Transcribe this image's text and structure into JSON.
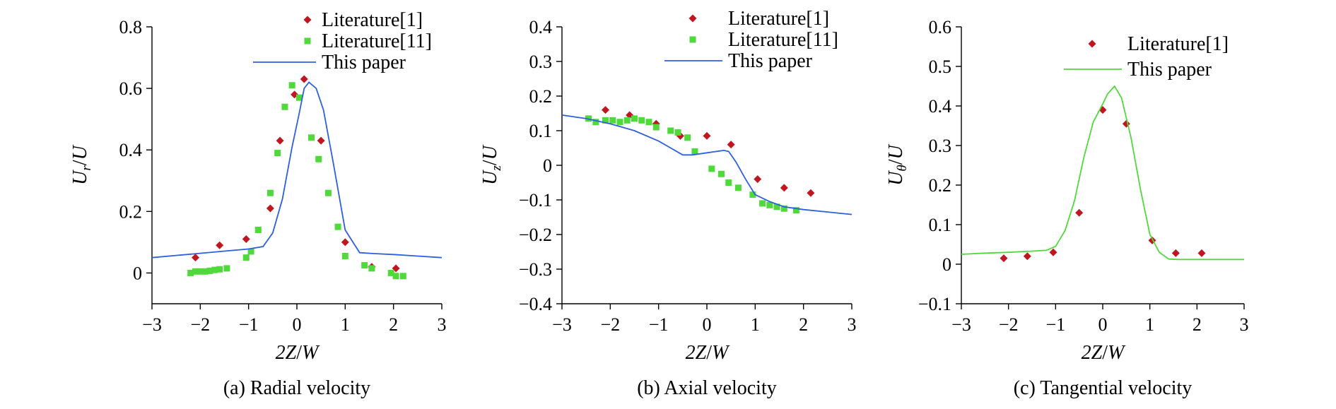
{
  "colors": {
    "literature1": "#c0161f",
    "literature11": "#4fd93b",
    "paper_blue": "#2d5fe0",
    "paper_green": "#4fd93b",
    "axis": "#000000"
  },
  "chart_data": [
    {
      "type": "scatter",
      "caption": "(a) Radial velocity",
      "xlabel": {
        "italic": "2Z",
        "sep": "/",
        "italic2": "W"
      },
      "ylabel": {
        "base": "U",
        "sub": "r",
        "sep": "/",
        "den": "U"
      },
      "xlim": [
        -3,
        3
      ],
      "ylim": [
        -0.1,
        0.8
      ],
      "xticks": [
        "−3",
        "−2",
        "−1",
        "0",
        "1",
        "2",
        "3"
      ],
      "yticks": [
        "0",
        "0.2",
        "0.4",
        "0.6",
        "0.8"
      ],
      "ytick_values": [
        0,
        0.2,
        0.4,
        0.6,
        0.8
      ],
      "legend_position": "top-right",
      "series": [
        {
          "name": "Literature[1]",
          "marker": "diamond",
          "color": "#c0161f",
          "x": [
            -2.1,
            -1.6,
            -1.05,
            -0.55,
            -0.35,
            -0.05,
            0.15,
            0.5,
            1.0,
            1.55,
            2.05
          ],
          "y": [
            0.05,
            0.09,
            0.11,
            0.21,
            0.43,
            0.58,
            0.63,
            0.43,
            0.1,
            0.02,
            0.015
          ]
        },
        {
          "name": "Literature[11]",
          "marker": "square",
          "color": "#4fd93b",
          "x": [
            -2.2,
            -2.1,
            -2.0,
            -1.9,
            -1.8,
            -1.7,
            -1.6,
            -1.45,
            -1.05,
            -0.95,
            -0.8,
            -0.55,
            -0.4,
            -0.25,
            -0.1,
            0.05,
            0.3,
            0.45,
            0.65,
            0.85,
            1.0,
            1.4,
            1.55,
            1.95,
            2.05,
            2.2
          ],
          "y": [
            0.0,
            0.005,
            0.005,
            0.005,
            0.007,
            0.01,
            0.012,
            0.015,
            0.05,
            0.07,
            0.14,
            0.26,
            0.39,
            0.54,
            0.61,
            0.57,
            0.44,
            0.37,
            0.26,
            0.15,
            0.055,
            0.025,
            0.015,
            0.0,
            -0.01,
            -0.01
          ]
        },
        {
          "name": "This paper",
          "marker": "line",
          "color": "#2d5fe0",
          "x": [
            -3.0,
            -2.5,
            -2.0,
            -1.5,
            -1.0,
            -0.7,
            -0.5,
            -0.3,
            -0.1,
            0.05,
            0.15,
            0.25,
            0.4,
            0.55,
            0.75,
            1.0,
            1.3,
            1.6,
            2.0,
            2.5,
            3.0
          ],
          "y": [
            0.05,
            0.057,
            0.064,
            0.071,
            0.078,
            0.086,
            0.13,
            0.24,
            0.41,
            0.52,
            0.6,
            0.62,
            0.6,
            0.53,
            0.36,
            0.14,
            0.066,
            0.063,
            0.06,
            0.055,
            0.05
          ]
        }
      ]
    },
    {
      "type": "scatter",
      "caption": "(b) Axial velocity",
      "xlabel": {
        "italic": "2Z",
        "sep": "/",
        "italic2": "W"
      },
      "ylabel": {
        "base": "U",
        "sub": "z",
        "sep": "/",
        "den": "U"
      },
      "xlim": [
        -3,
        3
      ],
      "ylim": [
        -0.4,
        0.4
      ],
      "xticks": [
        "−3",
        "−2",
        "−1",
        "0",
        "1",
        "2",
        "3"
      ],
      "yticks": [
        "−0.4",
        "−0.3",
        "−0.2",
        "−0.1",
        "0",
        "0.1",
        "0.2",
        "0.3",
        "0.4"
      ],
      "ytick_values": [
        -0.4,
        -0.3,
        -0.2,
        -0.1,
        0,
        0.1,
        0.2,
        0.3,
        0.4
      ],
      "legend_position": "top-right",
      "series": [
        {
          "name": "Literature[1]",
          "marker": "diamond",
          "color": "#c0161f",
          "x": [
            -2.1,
            -1.6,
            -1.05,
            -0.55,
            0.0,
            0.5,
            1.05,
            1.6,
            2.15
          ],
          "y": [
            0.16,
            0.145,
            0.12,
            0.085,
            0.085,
            0.06,
            -0.04,
            -0.065,
            -0.08
          ]
        },
        {
          "name": "Literature[11]",
          "marker": "square",
          "color": "#4fd93b",
          "x": [
            -2.45,
            -2.3,
            -2.1,
            -1.95,
            -1.8,
            -1.65,
            -1.5,
            -1.35,
            -1.2,
            -1.05,
            -0.75,
            -0.6,
            -0.4,
            -0.25,
            0.1,
            0.3,
            0.45,
            0.65,
            0.95,
            1.15,
            1.3,
            1.45,
            1.6,
            1.85
          ],
          "y": [
            0.135,
            0.125,
            0.13,
            0.13,
            0.125,
            0.13,
            0.135,
            0.13,
            0.125,
            0.11,
            0.1,
            0.095,
            0.08,
            0.04,
            -0.01,
            -0.025,
            -0.05,
            -0.065,
            -0.085,
            -0.11,
            -0.115,
            -0.12,
            -0.125,
            -0.13
          ]
        },
        {
          "name": "This paper",
          "marker": "line",
          "color": "#2d5fe0",
          "x": [
            -3.0,
            -2.5,
            -2.0,
            -1.5,
            -1.0,
            -0.75,
            -0.5,
            -0.3,
            -0.05,
            0.2,
            0.35,
            0.45,
            0.6,
            0.8,
            1.0,
            1.3,
            1.6,
            2.0,
            2.5,
            3.0
          ],
          "y": [
            0.145,
            0.135,
            0.12,
            0.1,
            0.07,
            0.05,
            0.03,
            0.03,
            0.035,
            0.04,
            0.043,
            0.04,
            0.01,
            -0.04,
            -0.085,
            -0.105,
            -0.12,
            -0.128,
            -0.135,
            -0.142
          ]
        }
      ]
    },
    {
      "type": "scatter",
      "caption": "(c) Tangential velocity",
      "xlabel": {
        "italic": "2Z",
        "sep": "/",
        "italic2": "W"
      },
      "ylabel": {
        "base": "U",
        "sub": "θ",
        "sep": "/",
        "den": "U"
      },
      "xlim": [
        -3,
        3
      ],
      "ylim": [
        -0.1,
        0.6
      ],
      "xticks": [
        "−3",
        "−2",
        "−1",
        "0",
        "1",
        "2",
        "3"
      ],
      "yticks": [
        "−0.1",
        "0",
        "0.1",
        "0.2",
        "0.3",
        "0.4",
        "0.5",
        "0.6"
      ],
      "ytick_values": [
        -0.1,
        0,
        0.1,
        0.2,
        0.3,
        0.4,
        0.5,
        0.6
      ],
      "legend_position": "top-right",
      "series": [
        {
          "name": "Literature[1]",
          "marker": "diamond",
          "color": "#c0161f",
          "x": [
            -2.1,
            -1.6,
            -1.05,
            -0.5,
            0.0,
            0.5,
            1.05,
            1.55,
            2.1
          ],
          "y": [
            0.015,
            0.02,
            0.03,
            0.13,
            0.39,
            0.355,
            0.06,
            0.028,
            0.028
          ]
        },
        {
          "name": "This paper",
          "marker": "line",
          "color": "#4fd93b",
          "x": [
            -3.0,
            -2.5,
            -2.0,
            -1.5,
            -1.2,
            -1.0,
            -0.8,
            -0.6,
            -0.4,
            -0.2,
            0.0,
            0.1,
            0.25,
            0.4,
            0.6,
            0.8,
            1.0,
            1.2,
            1.4,
            1.6,
            2.0,
            2.5,
            3.0
          ],
          "y": [
            0.025,
            0.028,
            0.03,
            0.033,
            0.035,
            0.045,
            0.085,
            0.16,
            0.27,
            0.36,
            0.405,
            0.43,
            0.45,
            0.42,
            0.32,
            0.19,
            0.075,
            0.03,
            0.013,
            0.012,
            0.012,
            0.012,
            0.012
          ]
        }
      ]
    }
  ]
}
